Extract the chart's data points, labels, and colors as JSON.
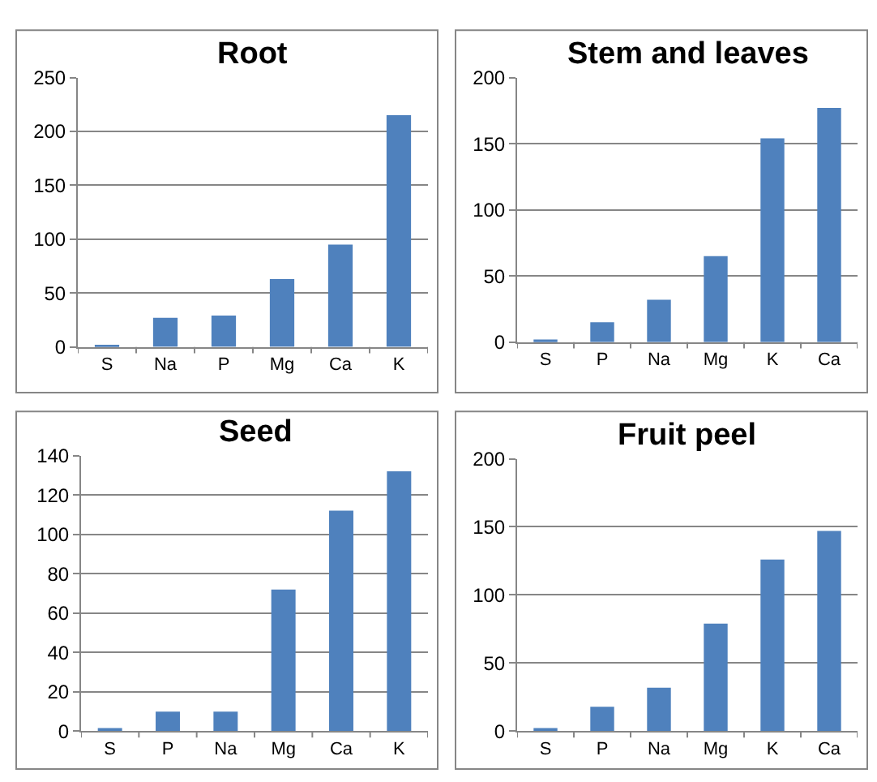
{
  "chart_data": [
    {
      "type": "bar",
      "title": "Root",
      "categories": [
        "S",
        "Na",
        "P",
        "Mg",
        "Ca",
        "K"
      ],
      "values": [
        2,
        27,
        29,
        63,
        95,
        215
      ],
      "color": "#4f81bd",
      "ylim": [
        0,
        250
      ],
      "yticks": [
        0,
        50,
        100,
        150,
        200,
        250
      ],
      "grid": "y"
    },
    {
      "type": "bar",
      "title": "Stem and leaves",
      "categories": [
        "S",
        "P",
        "Na",
        "Mg",
        "K",
        "Ca"
      ],
      "values": [
        2,
        15,
        32,
        65,
        154,
        177
      ],
      "color": "#4f81bd",
      "ylim": [
        0,
        200
      ],
      "yticks": [
        0,
        50,
        100,
        150,
        200
      ],
      "grid": "y"
    },
    {
      "type": "bar",
      "title": "Seed",
      "categories": [
        "S",
        "P",
        "Na",
        "Mg",
        "Ca",
        "K"
      ],
      "values": [
        1,
        10,
        10,
        72,
        112,
        132
      ],
      "color": "#4f81bd",
      "ylim": [
        0,
        140
      ],
      "yticks": [
        0,
        20,
        40,
        60,
        80,
        100,
        120,
        140
      ],
      "grid": "y"
    },
    {
      "type": "bar",
      "title": "Fruit peel",
      "categories": [
        "S",
        "P",
        "Na",
        "Mg",
        "K",
        "Ca"
      ],
      "values": [
        2,
        18,
        32,
        79,
        126,
        147
      ],
      "color": "#4f81bd",
      "ylim": [
        0,
        200
      ],
      "yticks": [
        0,
        50,
        100,
        150,
        200
      ],
      "grid": "y"
    }
  ]
}
